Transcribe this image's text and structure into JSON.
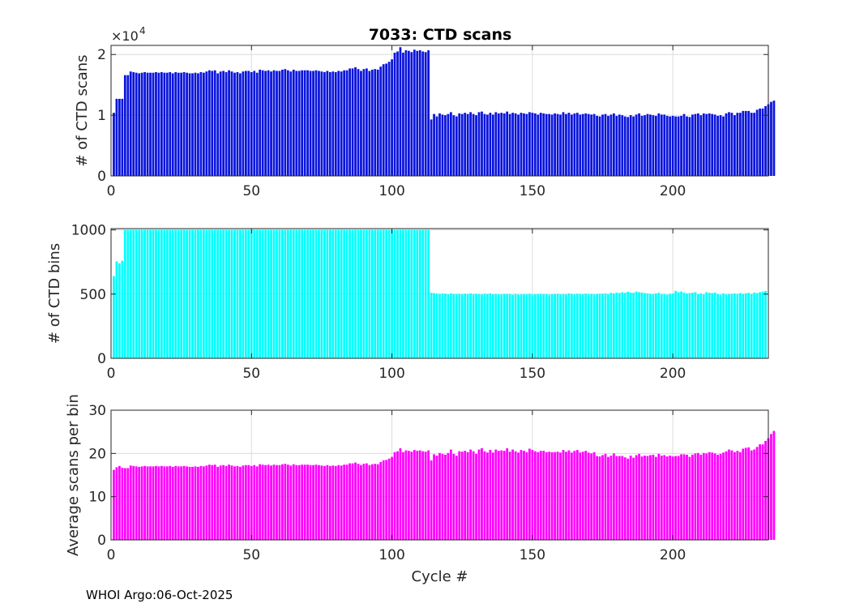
{
  "figure": {
    "title": "7033: CTD scans",
    "footer": "WHOI Argo:06-Oct-2025"
  },
  "chart_data": [
    {
      "type": "bar",
      "title": "7033: CTD scans",
      "xlabel": "",
      "ylabel": "# of CTD scans",
      "exponent_label": "×10",
      "exponent_power": "4",
      "xlim": [
        0,
        234
      ],
      "ylim": [
        0,
        2.15
      ],
      "xticks": [
        0,
        50,
        100,
        150,
        200
      ],
      "yticks": [
        0,
        1,
        2
      ],
      "grid": true,
      "color": "#0a14dc",
      "x_start": 1,
      "values": [
        1.04,
        1.27,
        1.27,
        1.27,
        1.66,
        1.66,
        1.72,
        1.71,
        1.7,
        1.69,
        1.7,
        1.71,
        1.7,
        1.7,
        1.7,
        1.71,
        1.7,
        1.71,
        1.7,
        1.7,
        1.71,
        1.69,
        1.71,
        1.7,
        1.7,
        1.71,
        1.7,
        1.69,
        1.69,
        1.7,
        1.69,
        1.71,
        1.7,
        1.72,
        1.74,
        1.73,
        1.74,
        1.69,
        1.72,
        1.73,
        1.71,
        1.74,
        1.72,
        1.7,
        1.71,
        1.69,
        1.72,
        1.73,
        1.73,
        1.71,
        1.73,
        1.7,
        1.75,
        1.74,
        1.73,
        1.74,
        1.72,
        1.74,
        1.73,
        1.73,
        1.75,
        1.76,
        1.74,
        1.72,
        1.75,
        1.73,
        1.73,
        1.74,
        1.74,
        1.74,
        1.73,
        1.73,
        1.74,
        1.73,
        1.72,
        1.71,
        1.73,
        1.71,
        1.72,
        1.71,
        1.73,
        1.72,
        1.74,
        1.74,
        1.77,
        1.77,
        1.79,
        1.76,
        1.73,
        1.76,
        1.77,
        1.73,
        1.75,
        1.76,
        1.75,
        1.8,
        1.84,
        1.85,
        1.88,
        1.92,
        2.03,
        2.05,
        2.12,
        2.03,
        2.07,
        2.06,
        2.04,
        2.08,
        2.06,
        2.07,
        2.05,
        2.04,
        2.07,
        0.93,
        1.02,
        0.98,
        1.03,
        1.01,
        1.0,
        1.02,
        1.05,
        1.0,
        0.98,
        1.03,
        1.02,
        1.04,
        1.02,
        1.05,
        1.02,
        1.0,
        1.05,
        1.06,
        1.02,
        1.01,
        1.04,
        1.01,
        1.05,
        1.03,
        1.04,
        1.03,
        1.06,
        1.02,
        1.04,
        1.03,
        1.01,
        1.04,
        1.03,
        1.02,
        1.05,
        1.04,
        1.03,
        1.01,
        1.04,
        1.03,
        1.02,
        1.02,
        1.01,
        1.03,
        1.02,
        1.01,
        1.05,
        1.02,
        1.04,
        1.01,
        1.03,
        1.04,
        1.01,
        1.02,
        1.03,
        1.02,
        1.01,
        1.02,
        0.99,
        0.98,
        1.01,
        1.02,
        0.99,
        1.01,
        1.03,
        0.99,
        1.01,
        1.0,
        0.98,
        0.97,
        1.0,
        0.98,
        1.01,
        1.03,
        0.99,
        1.0,
        1.02,
        1.01,
        1.0,
        0.99,
        1.03,
        1.01,
        1.01,
        0.99,
        0.98,
        0.99,
        0.98,
        0.98,
        0.99,
        1.02,
        0.98,
        0.97,
        1.01,
        1.02,
        1.03,
        1.0,
        1.03,
        1.02,
        1.03,
        1.02,
        1.01,
        0.99,
        1.0,
        0.98,
        1.03,
        1.05,
        1.04,
        1.0,
        1.04,
        1.04,
        1.07,
        1.07,
        1.07,
        1.04,
        1.04,
        1.09,
        1.11,
        1.11,
        1.15,
        1.18,
        1.22,
        1.24
      ]
    },
    {
      "type": "bar",
      "title": "",
      "xlabel": "",
      "ylabel": "# of CTD bins",
      "xlim": [
        0,
        234
      ],
      "ylim": [
        0,
        1010
      ],
      "xticks": [
        0,
        50,
        100,
        150,
        200
      ],
      "yticks": [
        0,
        500,
        1000
      ],
      "grid": true,
      "color": "#00ffff",
      "x_start": 1,
      "values": [
        640,
        755,
        740,
        760,
        1000,
        1000,
        1000,
        1000,
        1000,
        1000,
        1000,
        1000,
        1000,
        1000,
        1000,
        1000,
        1000,
        1000,
        1000,
        1000,
        1000,
        1000,
        1000,
        1000,
        1000,
        1000,
        1000,
        1000,
        1000,
        1000,
        1000,
        1000,
        1000,
        1000,
        1000,
        1000,
        1000,
        1000,
        1000,
        1000,
        1000,
        1000,
        1000,
        1000,
        1000,
        1000,
        1000,
        1000,
        1000,
        1000,
        1000,
        1000,
        1000,
        1000,
        1000,
        1000,
        1000,
        1000,
        1000,
        1000,
        1000,
        1000,
        1000,
        1000,
        1000,
        1000,
        1000,
        1000,
        1000,
        1000,
        1000,
        1000,
        1000,
        1000,
        1000,
        1000,
        1000,
        1000,
        1000,
        1000,
        1000,
        1000,
        1000,
        1000,
        1000,
        1000,
        1000,
        1000,
        1000,
        1000,
        1000,
        1000,
        1000,
        1000,
        1000,
        1000,
        1000,
        1000,
        1000,
        1000,
        1000,
        1000,
        1000,
        1000,
        1000,
        1000,
        1000,
        1000,
        1000,
        1000,
        1000,
        1000,
        1000,
        510,
        508,
        505,
        500,
        505,
        503,
        498,
        505,
        500,
        500,
        502,
        498,
        503,
        500,
        505,
        498,
        502,
        500,
        497,
        503,
        500,
        505,
        498,
        500,
        499,
        497,
        502,
        500,
        500,
        495,
        500,
        496,
        498,
        499,
        500,
        502,
        497,
        498,
        500,
        501,
        498,
        500,
        495,
        499,
        500,
        502,
        498,
        500,
        497,
        505,
        500,
        498,
        502,
        500,
        499,
        503,
        500,
        501,
        498,
        500,
        502,
        503,
        505,
        500,
        510,
        505,
        512,
        508,
        515,
        510,
        518,
        512,
        510,
        520,
        515,
        512,
        508,
        505,
        502,
        500,
        505,
        510,
        498,
        500,
        495,
        502,
        505,
        525,
        515,
        520,
        512,
        505,
        508,
        510,
        515,
        500,
        505,
        498,
        515,
        510,
        508,
        512,
        500,
        495,
        505,
        498,
        500,
        502,
        505,
        500,
        508,
        502,
        506,
        510,
        500,
        512,
        508,
        515,
        520,
        525
      ]
    },
    {
      "type": "bar",
      "title": "",
      "xlabel": "Cycle #",
      "ylabel": "Average scans per bin",
      "xlim": [
        0,
        234
      ],
      "ylim": [
        0,
        30
      ],
      "xticks": [
        0,
        50,
        100,
        150,
        200
      ],
      "yticks": [
        0,
        10,
        20,
        30
      ],
      "grid": true,
      "color": "#ff00ff",
      "x_start": 1,
      "values": [
        16.2,
        16.8,
        17.1,
        16.7,
        16.6,
        16.6,
        17.2,
        17.1,
        17.0,
        16.9,
        17.0,
        17.1,
        17.0,
        17.0,
        17.0,
        17.1,
        17.0,
        17.1,
        17.0,
        17.0,
        17.1,
        16.9,
        17.1,
        17.0,
        17.0,
        17.1,
        17.0,
        16.9,
        16.9,
        17.0,
        16.9,
        17.1,
        17.0,
        17.2,
        17.4,
        17.3,
        17.4,
        16.9,
        17.2,
        17.3,
        17.1,
        17.4,
        17.2,
        17.0,
        17.1,
        16.9,
        17.2,
        17.3,
        17.3,
        17.1,
        17.3,
        17.0,
        17.5,
        17.4,
        17.3,
        17.4,
        17.2,
        17.4,
        17.3,
        17.3,
        17.5,
        17.6,
        17.4,
        17.2,
        17.5,
        17.3,
        17.3,
        17.4,
        17.4,
        17.4,
        17.3,
        17.3,
        17.4,
        17.3,
        17.2,
        17.1,
        17.3,
        17.1,
        17.2,
        17.1,
        17.3,
        17.2,
        17.4,
        17.4,
        17.7,
        17.7,
        17.9,
        17.6,
        17.3,
        17.6,
        17.7,
        17.3,
        17.5,
        17.6,
        17.5,
        18.0,
        18.4,
        18.5,
        18.8,
        19.2,
        20.3,
        20.5,
        21.2,
        20.3,
        20.7,
        20.6,
        20.4,
        20.8,
        20.6,
        20.7,
        20.5,
        20.4,
        20.7,
        18.4,
        19.8,
        19.5,
        20.1,
        19.9,
        19.7,
        20.1,
        20.9,
        19.9,
        19.5,
        20.5,
        20.4,
        20.6,
        20.3,
        20.9,
        20.5,
        19.9,
        20.9,
        21.2,
        20.5,
        20.2,
        20.8,
        20.2,
        20.9,
        20.6,
        20.7,
        20.6,
        21.2,
        20.4,
        20.9,
        20.5,
        20.2,
        20.8,
        20.6,
        20.3,
        21.1,
        20.8,
        20.5,
        20.3,
        20.6,
        20.6,
        20.3,
        20.4,
        20.3,
        20.3,
        20.4,
        20.2,
        20.8,
        20.4,
        20.7,
        20.2,
        20.6,
        20.8,
        20.2,
        20.4,
        20.6,
        20.2,
        20.0,
        20.3,
        19.4,
        19.3,
        19.6,
        19.9,
        19.2,
        19.5,
        20.0,
        19.4,
        19.4,
        19.4,
        19.1,
        18.8,
        19.5,
        19.0,
        19.6,
        19.9,
        19.3,
        19.5,
        19.4,
        19.6,
        19.7,
        19.2,
        19.9,
        19.5,
        19.6,
        19.3,
        19.5,
        19.3,
        19.4,
        19.4,
        19.8,
        19.8,
        19.7,
        19.2,
        19.7,
        20.0,
        20.1,
        19.7,
        20.1,
        20.0,
        20.3,
        20.2,
        20.0,
        19.7,
        19.9,
        20.2,
        20.5,
        20.9,
        20.7,
        20.3,
        20.6,
        20.3,
        21.1,
        21.3,
        21.4,
        20.7,
        20.9,
        21.5,
        22.1,
        22.1,
        22.9,
        23.5,
        24.5,
        25.2
      ]
    }
  ]
}
